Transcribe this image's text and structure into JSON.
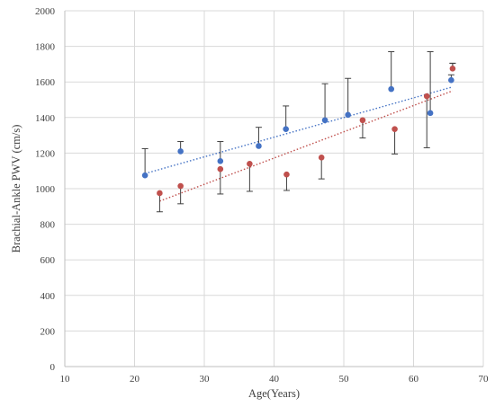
{
  "chart_data": {
    "type": "scatter",
    "xlabel": "Age(Years)",
    "ylabel": "Brachial-Ankle PWV (cm/s)",
    "xlim": [
      10,
      70
    ],
    "ylim": [
      0,
      2000
    ],
    "xticks": [
      10,
      20,
      30,
      40,
      50,
      60,
      70
    ],
    "yticks": [
      0,
      200,
      400,
      600,
      800,
      1000,
      1200,
      1400,
      1600,
      1800,
      2000
    ],
    "x_tick_labels": [
      "10",
      "20",
      "30",
      "40",
      "50",
      "60",
      "70"
    ],
    "y_tick_labels": [
      "0",
      "200",
      "400",
      "600",
      "800",
      "1000",
      "1200",
      "1400",
      "1600",
      "1800",
      "2000"
    ],
    "grid": true,
    "legend": "none",
    "colors": {
      "blue": "#4472c4",
      "red": "#c0504d",
      "error_bar": "#404040",
      "grid": "#d9d9d9"
    },
    "series": [
      {
        "color": "blue",
        "points": [
          {
            "x": 21.5,
            "y": 1075,
            "err_upper": 1225
          },
          {
            "x": 26.6,
            "y": 1210,
            "err_upper": 1265
          },
          {
            "x": 32.3,
            "y": 1155,
            "err_upper": 1265
          },
          {
            "x": 37.8,
            "y": 1240,
            "err_upper": 1345
          },
          {
            "x": 41.7,
            "y": 1335,
            "err_upper": 1465
          },
          {
            "x": 47.3,
            "y": 1385,
            "err_upper": 1590
          },
          {
            "x": 50.6,
            "y": 1415,
            "err_upper": 1620
          },
          {
            "x": 56.8,
            "y": 1560,
            "err_upper": 1770
          },
          {
            "x": 62.4,
            "y": 1425,
            "err_upper": 1770
          },
          {
            "x": 65.4,
            "y": 1610,
            "err_upper": 1640
          }
        ],
        "trendline": {
          "x": [
            21.5,
            65.4
          ],
          "y": [
            1085,
            1570
          ]
        }
      },
      {
        "color": "red",
        "points": [
          {
            "x": 23.6,
            "y": 975,
            "err_lower": 870
          },
          {
            "x": 26.6,
            "y": 1015,
            "err_lower": 915
          },
          {
            "x": 32.3,
            "y": 1110,
            "err_lower": 970
          },
          {
            "x": 36.5,
            "y": 1140,
            "err_lower": 985
          },
          {
            "x": 41.8,
            "y": 1080,
            "err_lower": 990
          },
          {
            "x": 46.8,
            "y": 1175,
            "err_lower": 1055
          },
          {
            "x": 52.7,
            "y": 1385,
            "err_lower": 1285
          },
          {
            "x": 57.3,
            "y": 1335,
            "err_lower": 1195
          },
          {
            "x": 61.9,
            "y": 1520,
            "err_lower": 1230
          },
          {
            "x": 65.6,
            "y": 1675,
            "err_lower": 1705,
            "err_upper": 1705
          }
        ],
        "trendline": {
          "x": [
            23.6,
            65.6
          ],
          "y": [
            930,
            1550
          ]
        }
      }
    ]
  }
}
